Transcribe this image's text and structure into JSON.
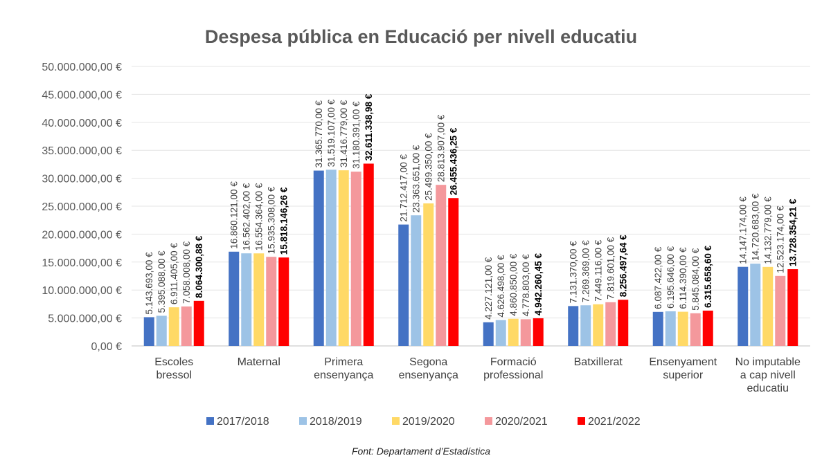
{
  "chart_data": {
    "type": "bar",
    "title": "Despesa pública en Educació per nivell educatiu",
    "xlabel": "",
    "ylabel": "",
    "ylim": [
      0,
      50000000
    ],
    "yticks": [
      "0,00 €",
      "5.000.000,00 €",
      "10.000.000,00 €",
      "15.000.000,00 €",
      "20.000.000,00 €",
      "25.000.000,00 €",
      "30.000.000,00 €",
      "35.000.000,00 €",
      "40.000.000,00 €",
      "45.000.000,00 €",
      "50.000.000,00 €"
    ],
    "grid": true,
    "legend_position": "bottom",
    "categories": [
      [
        "Escoles",
        "bressol"
      ],
      [
        "Maternal"
      ],
      [
        "Primera",
        "ensenyança"
      ],
      [
        "Segona",
        "ensenyança"
      ],
      [
        "Formació",
        "professional"
      ],
      [
        "Batxillerat"
      ],
      [
        "Ensenyament",
        "superior"
      ],
      [
        "No imputable",
        "a cap nivell",
        "educatiu"
      ]
    ],
    "series": [
      {
        "name": "2017/2018",
        "color": "#4472C4",
        "values": [
          5143693.0,
          16860121.0,
          31365770.0,
          21712417.0,
          4227121.0,
          7131370.0,
          6087422.0,
          14147174.0
        ],
        "labels": [
          "5.143.693,00 €",
          "16.860.121,00 €",
          "31.365.770,00 €",
          "21.712.417,00 €",
          "4.227.121,00 €",
          "7.131.370,00 €",
          "6.087.422,00 €",
          "14.147.174,00 €"
        ]
      },
      {
        "name": "2018/2019",
        "color": "#9DC3E6",
        "values": [
          5395088.0,
          16562402.0,
          31519107.0,
          23363651.0,
          4626498.0,
          7269369.0,
          6195646.0,
          14720683.0
        ],
        "labels": [
          "5.395.088,00 €",
          "16.562.402,00 €",
          "31.519.107,00 €",
          "23.363.651,00 €",
          "4.626.498,00 €",
          "7.269.369,00 €",
          "6.195.646,00 €",
          "14.720.683,00 €"
        ]
      },
      {
        "name": "2019/2020",
        "color": "#FFD966",
        "values": [
          6911405.0,
          16554364.0,
          31416779.0,
          25499350.0,
          4860850.0,
          7449116.0,
          6114390.0,
          14132779.0
        ],
        "labels": [
          "6.911.405,00 €",
          "16.554.364,00 €",
          "31.416.779,00 €",
          "25.499.350,00 €",
          "4.860.850,00 €",
          "7.449.116,00 €",
          "6.114.390,00 €",
          "14.132.779,00 €"
        ]
      },
      {
        "name": "2020/2021",
        "color": "#F4989C",
        "values": [
          7058008.0,
          15935308.0,
          31180391.0,
          28813907.0,
          4778803.0,
          7819601.0,
          5845084.0,
          12523174.0
        ],
        "labels": [
          "7.058.008,00 €",
          "15.935.308,00 €",
          "31.180.391,00 €",
          "28.813.907,00 €",
          "4.778.803,00 €",
          "7.819.601,00 €",
          "5.845.084,00 €",
          "12.523.174,00 €"
        ]
      },
      {
        "name": "2021/2022",
        "color": "#FF0000",
        "values": [
          8064300.88,
          15818146.26,
          32611338.98,
          26455436.25,
          4942260.45,
          8256497.64,
          6315658.6,
          13728354.21
        ],
        "labels": [
          "8.064.300,88 €",
          "15.818.146,26 €",
          "32.611.338,98 €",
          "26.455.436,25 €",
          "4.942.260,45 €",
          "8.256.497,64 €",
          "6.315.658,60 €",
          "13.728.354,21 €"
        ]
      }
    ],
    "source": "Font: Departament d’Estadística"
  }
}
